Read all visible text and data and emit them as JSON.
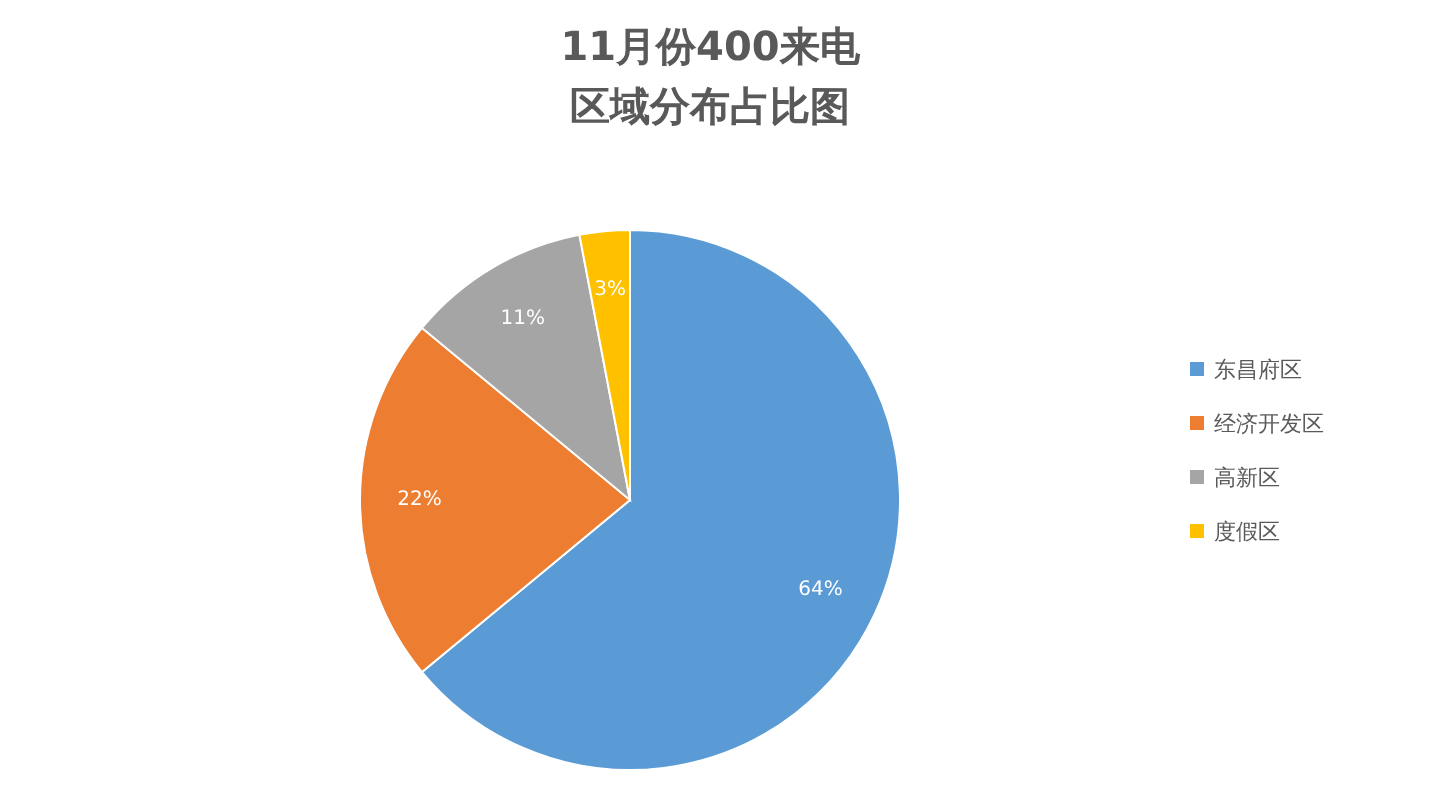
{
  "chart_data": {
    "type": "pie",
    "title": "11月份400来电",
    "subtitle": "区域分布占比图",
    "categories": [
      "东昌府区",
      "经济开发区",
      "高新区",
      "度假区"
    ],
    "values": [
      64,
      22,
      11,
      3
    ],
    "colors": [
      "#5b9bd5",
      "#ed7d31",
      "#a5a5a5",
      "#ffc000"
    ],
    "value_labels": [
      "64%",
      "22%",
      "11%",
      "3%"
    ],
    "legend": "right"
  }
}
